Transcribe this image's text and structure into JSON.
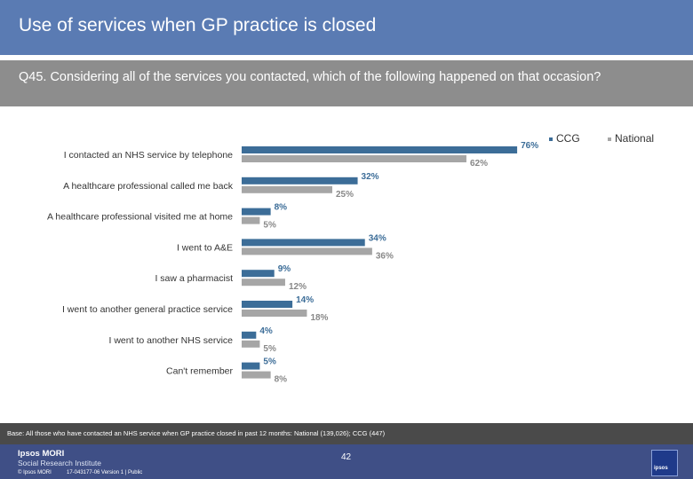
{
  "header": {
    "title": "Use of services when GP practice is closed"
  },
  "question": {
    "text": "Q45. Considering all of the services you contacted, which of the following happened on that occasion?"
  },
  "legend": {
    "items": [
      "CCG",
      "National"
    ]
  },
  "colors": {
    "ccg": "#3c6d98",
    "national": "#a6a6a6",
    "header_band": "#5a7bb3",
    "question_band": "#8d8d8d",
    "footer_band": "#3f4f86"
  },
  "chart_data": {
    "type": "bar",
    "orientation": "horizontal",
    "categories": [
      "I contacted an NHS service by telephone",
      "A healthcare professional called me back",
      "A healthcare professional visited me at home",
      "I went to A&E",
      "I saw a pharmacist",
      "I went to another general practice service",
      "I went to another NHS service",
      "Can't remember"
    ],
    "series": [
      {
        "name": "CCG",
        "values": [
          76,
          32,
          8,
          34,
          9,
          14,
          4,
          5
        ],
        "labels": [
          "76%",
          "32%",
          "8%",
          "34%",
          "9%",
          "14%",
          "4%",
          "5%"
        ]
      },
      {
        "name": "National",
        "values": [
          62,
          25,
          5,
          36,
          12,
          18,
          5,
          8
        ],
        "labels": [
          "62%",
          "25%",
          "5%",
          "36%",
          "12%",
          "18%",
          "5%",
          "8%"
        ]
      }
    ],
    "unit": "%",
    "xlim": [
      0,
      100
    ],
    "legend_position": "top-right",
    "grid": false
  },
  "footer": {
    "base": "Base: All those who have contacted an NHS service when GP practice closed in past 12 months: National (139,026); CCG (447)",
    "page_number": "42",
    "logo_line1": "Ipsos MORI",
    "logo_line2": "Social Research Institute",
    "copyright": "© Ipsos MORI",
    "job_ref": "17-043177-06 Version 1 | Public",
    "badge_text": "ipsos"
  }
}
